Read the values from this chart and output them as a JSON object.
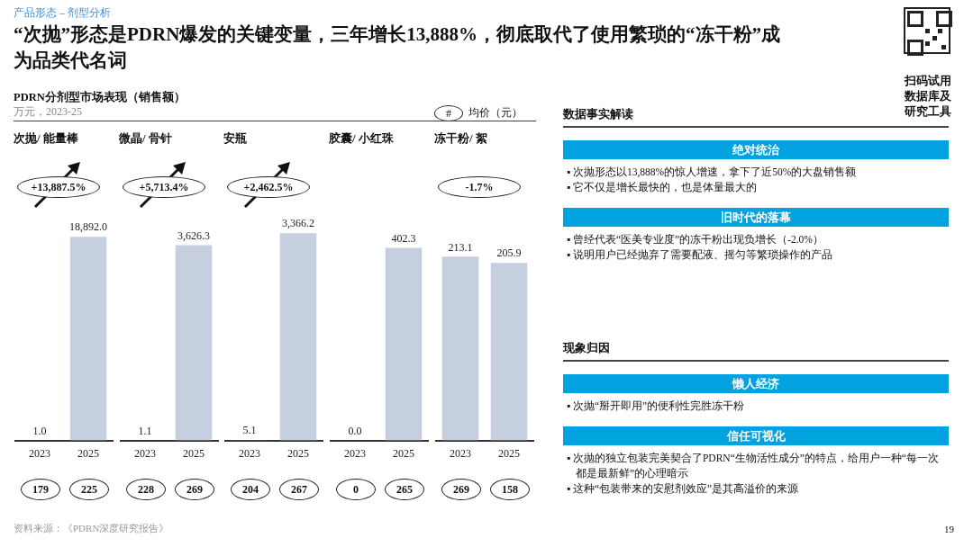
{
  "chart_data": [
    {
      "type": "other",
      "title": "“次抛”形态是PDRN爆发的关键变量，三年增长13,888%，彻底取代了使用繁琐的“冻干粉”成为品类代名词",
      "subtitle": "产品形态 – 剂型分析",
      "annotations": [
        "PDRN分剂型市场表现（销售额）",
        "万元，2023-25",
        "#",
        "均价（元）",
        "资料来源：《PDRN深度研究报告》",
        "扫码试用数据库及研究工具",
        "19"
      ]
    },
    {
      "type": "bar",
      "title": "次抛/ 能量棒",
      "categories": [
        "2023",
        "2025"
      ],
      "values": [
        1.0,
        18892.0
      ],
      "value_labels": [
        "1.0",
        "18,892.0"
      ],
      "color": "#c5cfe0",
      "annotations": [
        "+13,887.5%",
        "179",
        "225"
      ]
    },
    {
      "type": "bar",
      "title": "微晶/ 骨针",
      "categories": [
        "2023",
        "2025"
      ],
      "values": [
        1.1,
        3626.3
      ],
      "value_labels": [
        "1.1",
        "3,626.3"
      ],
      "color": "#c5cfe0",
      "annotations": [
        "+5,713.4%",
        "228",
        "269"
      ]
    },
    {
      "type": "bar",
      "title": "安瓶",
      "categories": [
        "2023",
        "2025"
      ],
      "values": [
        5.1,
        3366.2
      ],
      "value_labels": [
        "5.1",
        "3,366.2"
      ],
      "color": "#c5cfe0",
      "annotations": [
        "+2,462.5%",
        "204",
        "267"
      ]
    },
    {
      "type": "bar",
      "title": "胶囊/ 小红珠",
      "categories": [
        "2023",
        "2025"
      ],
      "values": [
        0.0,
        402.3
      ],
      "value_labels": [
        "0.0",
        "402.3"
      ],
      "color": "#c5cfe0",
      "annotations": [
        "0",
        "265"
      ]
    },
    {
      "type": "bar",
      "title": "冻干粉/ 絮",
      "categories": [
        "2023",
        "2025"
      ],
      "values": [
        213.1,
        205.9
      ],
      "value_labels": [
        "213.1",
        "205.9"
      ],
      "color": "#c5cfe0",
      "annotations": [
        "-1.7%",
        "269",
        "158"
      ]
    },
    {
      "type": "other",
      "title": "数据事实解读"
    },
    {
      "type": "other",
      "title": "绝对统治",
      "annotations": [
        "▪ 次抛形态以13,888%的惊人增速，拿下了近50%的大盘销售额",
        "▪ 它不仅是增长最快的，也是体量最大的"
      ]
    },
    {
      "type": "other",
      "title": "旧时代的落幕",
      "annotations": [
        "▪ 曾经代表“医美专业度”的冻干粉出现负增长（-2.0%）",
        "▪ 说明用户已经抛弃了需要配液、摇匀等繁琐操作的产品"
      ]
    },
    {
      "type": "other",
      "title": "现象归因"
    },
    {
      "type": "other",
      "title": "懒人经济",
      "annotations": [
        "▪ 次抛“掰开即用”的便利性完胜冻干粉"
      ]
    },
    {
      "type": "other",
      "title": "信任可视化",
      "annotations": [
        "▪ 次抛的独立包装完美契合了PDRN“生物活性成分”的特点，给用户一种“每一次都是最新鲜”的心理暗示",
        "▪ 这种“包装带来的安慰剂效应”是其高溢价的来源"
      ]
    }
  ]
}
